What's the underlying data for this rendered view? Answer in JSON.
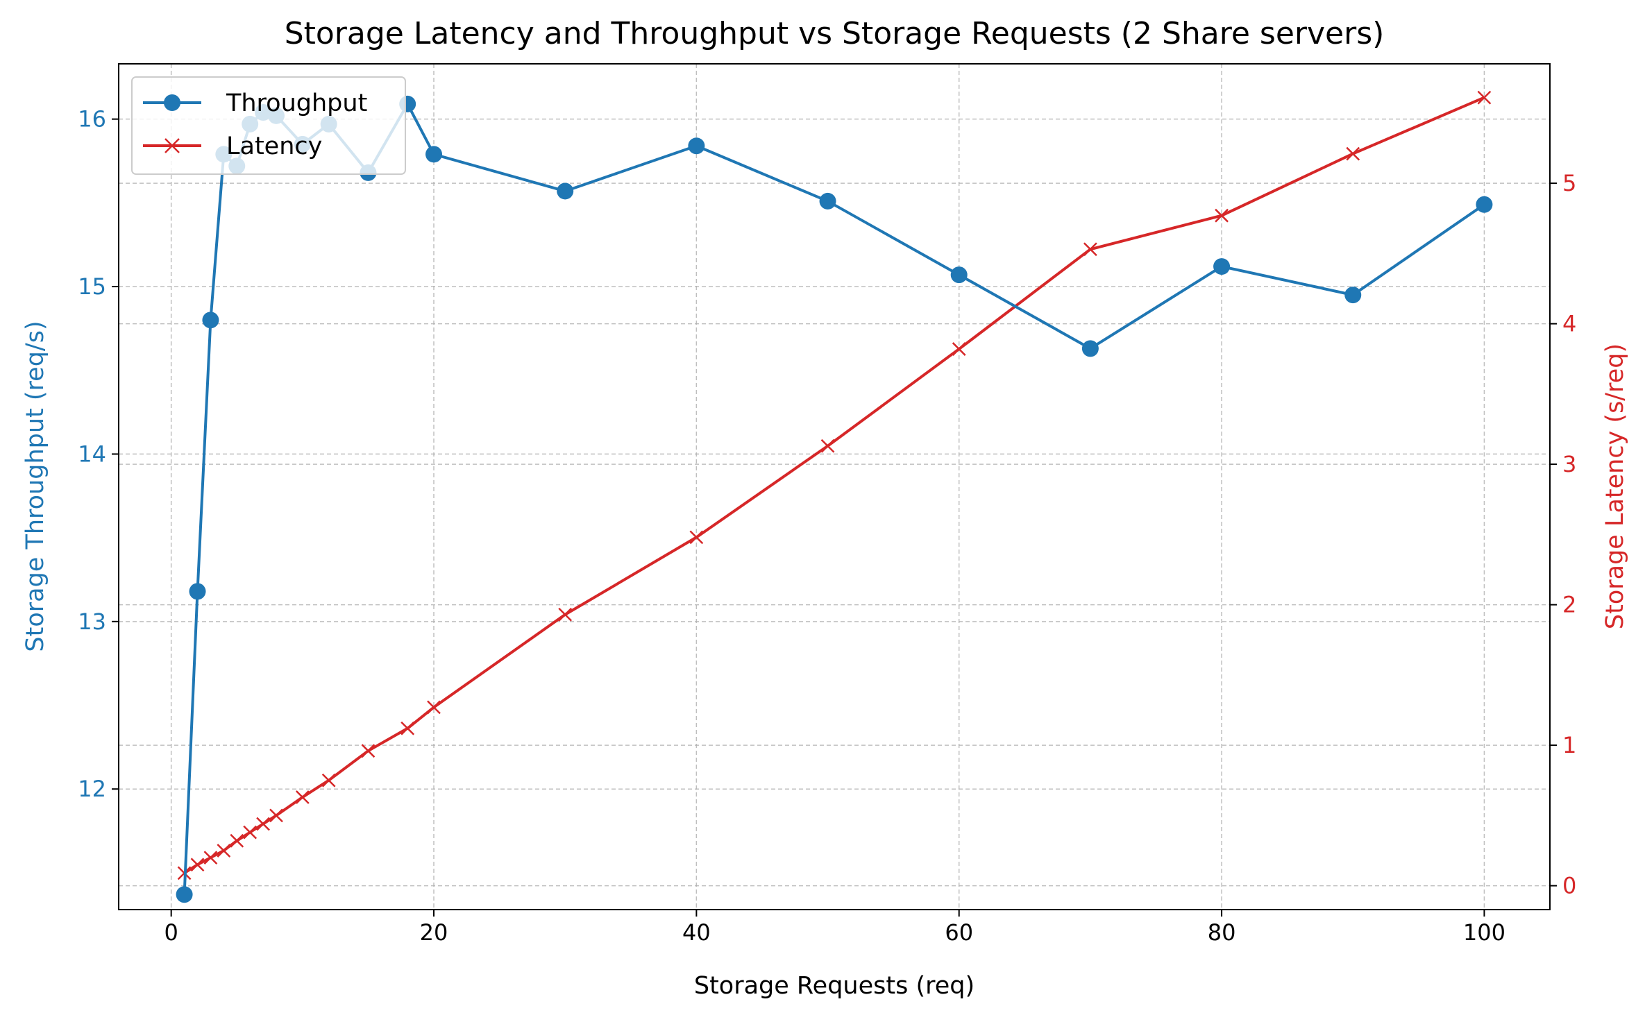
{
  "chart_data": {
    "type": "line",
    "title": "Storage Latency and Throughput vs Storage Requests (2 Share servers)",
    "xlabel": "Storage Requests (req)",
    "ylabel_left": "Storage Throughput (req/s)",
    "ylabel_right": "Storage Latency (s/req)",
    "xlim": [
      -4,
      105
    ],
    "ylim_left": [
      11.28,
      16.33
    ],
    "ylim_right": [
      -0.17,
      5.85
    ],
    "xticks": [
      0,
      20,
      40,
      60,
      80,
      100
    ],
    "yticks_left": [
      12,
      13,
      14,
      15,
      16
    ],
    "yticks_right": [
      0,
      1,
      2,
      3,
      4,
      5
    ],
    "grid": true,
    "legend_position": "upper left",
    "colors": {
      "throughput": "#1f77b4",
      "latency": "#d62728"
    },
    "x": [
      1,
      2,
      3,
      4,
      5,
      6,
      7,
      8,
      10,
      12,
      15,
      18,
      20,
      30,
      40,
      50,
      60,
      70,
      80,
      90,
      100
    ],
    "series": [
      {
        "name": "Throughput",
        "axis": "left",
        "marker": "circle",
        "values": [
          11.37,
          13.18,
          14.8,
          15.79,
          15.72,
          15.97,
          16.04,
          16.02,
          15.85,
          15.97,
          15.68,
          16.09,
          15.79,
          15.57,
          15.84,
          15.51,
          15.07,
          14.63,
          15.12,
          14.95,
          15.49
        ]
      },
      {
        "name": "Latency",
        "axis": "right",
        "marker": "x",
        "values": [
          0.09,
          0.15,
          0.2,
          0.25,
          0.32,
          0.38,
          0.44,
          0.5,
          0.63,
          0.75,
          0.96,
          1.12,
          1.27,
          1.93,
          2.48,
          3.13,
          3.82,
          4.53,
          4.77,
          5.21,
          5.61
        ]
      }
    ]
  }
}
